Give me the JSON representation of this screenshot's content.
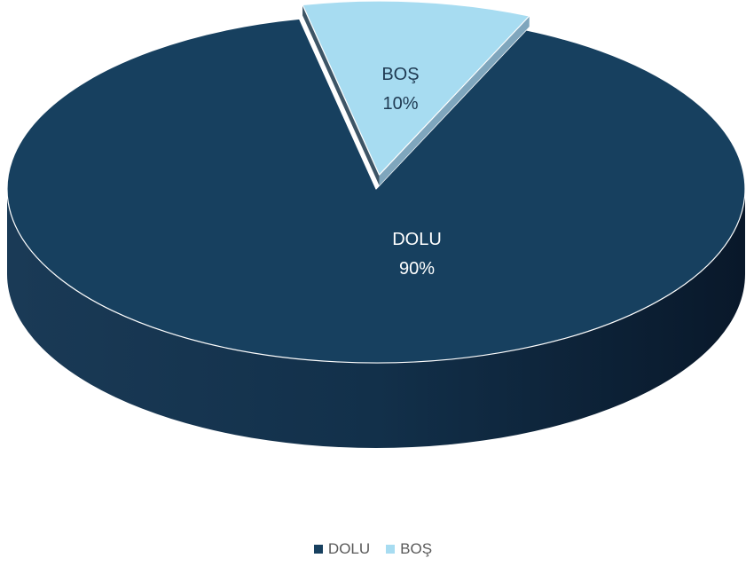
{
  "chart_data": {
    "type": "pie",
    "style": "3d",
    "title": "",
    "slices": [
      {
        "label": "DOLU",
        "value": 90,
        "display": "90%",
        "color": "#17405f",
        "label_color": "#ffffff"
      },
      {
        "label": "BOŞ",
        "value": 10,
        "display": "10%",
        "color": "#a7dcf1",
        "label_color": "#1f3a52",
        "exploded": true
      }
    ],
    "legend": {
      "position": "bottom",
      "entries": [
        "DOLU",
        "BOŞ"
      ]
    }
  }
}
